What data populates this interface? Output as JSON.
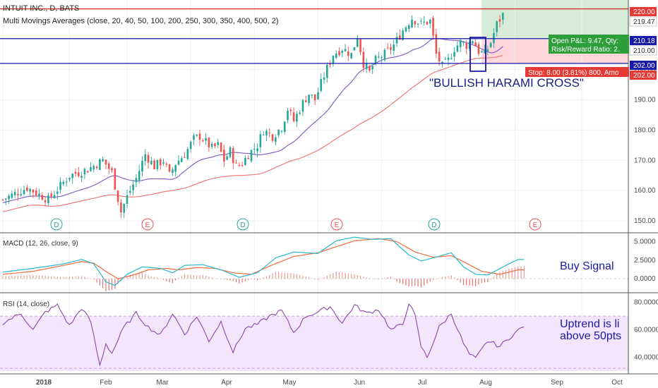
{
  "header": {
    "symbol": "INTUIT INC., D, BATS",
    "indicator": "Multi Movings Averages (close, 20, 40, 50, 100, 200, 250, 300, 350, 400, 500, 2)"
  },
  "annotations": {
    "pattern": "\"BULLISH HARAMI CROSS\"",
    "buy_signal": "Buy Signal",
    "uptrend_line1": "Uptrend is li",
    "uptrend_line2": "above 50pts",
    "position_line1": "Open P&L: 9.47, Qty:",
    "position_line2": "Risk/Reward Ratio: 2.",
    "stop_label": "Stop: 8.00 (3.81%) 800, Amo"
  },
  "colors": {
    "up": "#26a69a",
    "down": "#ef5350",
    "ma_fast": "#7e57c2",
    "ma_slow": "#f06f6f",
    "macd_line": "#2ab7d0",
    "signal_line": "#f26b3a",
    "rsi_line": "#8e44ad",
    "rsi_band": "#f3e5fc",
    "hline_red": "#d32f2f",
    "hline_blue": "#1a1aa8",
    "target_zone": "#c8e6c9",
    "stop_zone": "#ffcdd2"
  },
  "chart_data": [
    {
      "type": "candlestick",
      "pane": "price",
      "ylim": [
        147,
        222
      ],
      "yticks": [
        150,
        160,
        170,
        180,
        190,
        200,
        210,
        220
      ],
      "price_labels": [
        "220.00",
        "219.47",
        "210.18",
        "210.00",
        "202.00",
        "202.00"
      ],
      "xticks": [
        "2018",
        "Feb",
        "Mar",
        "Apr",
        "May",
        "Jun",
        "Jul",
        "Aug",
        "Sep",
        "Oct"
      ],
      "close_path": [
        [
          0,
          157
        ],
        [
          8,
          161
        ],
        [
          15,
          157
        ],
        [
          22,
          165
        ],
        [
          28,
          167
        ],
        [
          33,
          170
        ],
        [
          36,
          166
        ],
        [
          39,
          153
        ],
        [
          41,
          158
        ],
        [
          44,
          164
        ],
        [
          47,
          172
        ],
        [
          50,
          168
        ],
        [
          53,
          170
        ],
        [
          55,
          165
        ],
        [
          57,
          169
        ],
        [
          60,
          172
        ],
        [
          63,
          177
        ],
        [
          65,
          178
        ],
        [
          67,
          176
        ],
        [
          69,
          174
        ],
        [
          71,
          175
        ],
        [
          73,
          170
        ],
        [
          75,
          173
        ],
        [
          77,
          168
        ],
        [
          79,
          169
        ],
        [
          81,
          172
        ],
        [
          84,
          175
        ],
        [
          86,
          180
        ],
        [
          89,
          178
        ],
        [
          92,
          181
        ],
        [
          94,
          187
        ],
        [
          96,
          183
        ],
        [
          99,
          189
        ],
        [
          101,
          192
        ],
        [
          103,
          190
        ],
        [
          106,
          198
        ],
        [
          109,
          205
        ],
        [
          112,
          207
        ],
        [
          115,
          205
        ],
        [
          117,
          211
        ],
        [
          119,
          202
        ],
        [
          121,
          199
        ],
        [
          123,
          203
        ],
        [
          126,
          205
        ],
        [
          129,
          208
        ],
        [
          132,
          213
        ],
        [
          135,
          217
        ],
        [
          138,
          215
        ],
        [
          141,
          216
        ],
        [
          143,
          205
        ],
        [
          145,
          201
        ],
        [
          147,
          203
        ],
        [
          149,
          207
        ],
        [
          151,
          209
        ],
        [
          153,
          208
        ],
        [
          155,
          210
        ],
        [
          157,
          206
        ],
        [
          159,
          205
        ],
        [
          161,
          209
        ],
        [
          163,
          215
        ],
        [
          165,
          218
        ]
      ],
      "horizontal_levels": {
        "target": 220.0,
        "entry": 210.18,
        "stop": 202.0
      },
      "events": [
        "D",
        "E",
        "D",
        "E",
        "D",
        "E"
      ]
    },
    {
      "type": "line",
      "pane": "macd",
      "title": "MACD (12, 26, close, 9)",
      "ylim": [
        -1.5,
        5.8
      ],
      "yticks": [
        0.0,
        2.5,
        5.0
      ],
      "ytick_labels": [
        "0.0000",
        "2.5000",
        "5.0000"
      ],
      "macd_path": [
        [
          0,
          0.9
        ],
        [
          10,
          1.4
        ],
        [
          20,
          2.0
        ],
        [
          26,
          2.6
        ],
        [
          30,
          2.0
        ],
        [
          34,
          -0.4
        ],
        [
          37,
          -0.9
        ],
        [
          41,
          0.6
        ],
        [
          46,
          1.6
        ],
        [
          52,
          1.4
        ],
        [
          56,
          0.8
        ],
        [
          60,
          1.8
        ],
        [
          66,
          1.9
        ],
        [
          72,
          1.2
        ],
        [
          78,
          0.2
        ],
        [
          84,
          0.8
        ],
        [
          90,
          2.8
        ],
        [
          96,
          3.6
        ],
        [
          104,
          3.4
        ],
        [
          110,
          5.1
        ],
        [
          116,
          5.6
        ],
        [
          122,
          5.3
        ],
        [
          128,
          5.4
        ],
        [
          134,
          3.2
        ],
        [
          138,
          2.4
        ],
        [
          142,
          2.8
        ],
        [
          148,
          3.5
        ],
        [
          152,
          1.6
        ],
        [
          156,
          0.6
        ],
        [
          160,
          0.5
        ],
        [
          166,
          1.8
        ],
        [
          170,
          2.6
        ]
      ],
      "signal_path": [
        [
          0,
          0.6
        ],
        [
          10,
          1.0
        ],
        [
          20,
          1.8
        ],
        [
          26,
          2.3
        ],
        [
          30,
          2.1
        ],
        [
          34,
          1.0
        ],
        [
          38,
          0.0
        ],
        [
          43,
          0.5
        ],
        [
          48,
          1.2
        ],
        [
          54,
          1.4
        ],
        [
          58,
          1.2
        ],
        [
          64,
          1.5
        ],
        [
          70,
          1.4
        ],
        [
          76,
          0.8
        ],
        [
          82,
          0.6
        ],
        [
          88,
          1.7
        ],
        [
          96,
          3.0
        ],
        [
          104,
          3.5
        ],
        [
          110,
          4.3
        ],
        [
          116,
          5.1
        ],
        [
          124,
          5.4
        ],
        [
          130,
          5.0
        ],
        [
          136,
          3.6
        ],
        [
          142,
          2.9
        ],
        [
          148,
          3.1
        ],
        [
          152,
          2.3
        ],
        [
          158,
          1.0
        ],
        [
          164,
          0.6
        ],
        [
          170,
          1.2
        ]
      ],
      "annotation": "Buy Signal"
    },
    {
      "type": "line",
      "pane": "rsi",
      "title": "RSI (14, close)",
      "ylim": [
        30,
        85
      ],
      "yticks": [
        40,
        60,
        80
      ],
      "ytick_labels": [
        "40.0000",
        "60.0000",
        "80.0000"
      ],
      "band": [
        30,
        70
      ],
      "rsi_path": [
        [
          0,
          65
        ],
        [
          6,
          72
        ],
        [
          10,
          60
        ],
        [
          14,
          73
        ],
        [
          18,
          78
        ],
        [
          22,
          63
        ],
        [
          26,
          76
        ],
        [
          29,
          66
        ],
        [
          32,
          34
        ],
        [
          34,
          50
        ],
        [
          36,
          43
        ],
        [
          40,
          62
        ],
        [
          44,
          72
        ],
        [
          48,
          62
        ],
        [
          52,
          56
        ],
        [
          56,
          72
        ],
        [
          60,
          57
        ],
        [
          64,
          70
        ],
        [
          68,
          52
        ],
        [
          72,
          66
        ],
        [
          76,
          44
        ],
        [
          80,
          61
        ],
        [
          84,
          64
        ],
        [
          88,
          70
        ],
        [
          92,
          74
        ],
        [
          96,
          58
        ],
        [
          100,
          70
        ],
        [
          104,
          73
        ],
        [
          108,
          77
        ],
        [
          112,
          65
        ],
        [
          116,
          78
        ],
        [
          120,
          72
        ],
        [
          124,
          75
        ],
        [
          128,
          60
        ],
        [
          132,
          64
        ],
        [
          134,
          80
        ],
        [
          136,
          70
        ],
        [
          138,
          48
        ],
        [
          140,
          40
        ],
        [
          144,
          62
        ],
        [
          148,
          72
        ],
        [
          152,
          50
        ],
        [
          154,
          42
        ],
        [
          156,
          39
        ],
        [
          160,
          52
        ],
        [
          164,
          48
        ],
        [
          168,
          56
        ],
        [
          172,
          63
        ]
      ]
    }
  ]
}
